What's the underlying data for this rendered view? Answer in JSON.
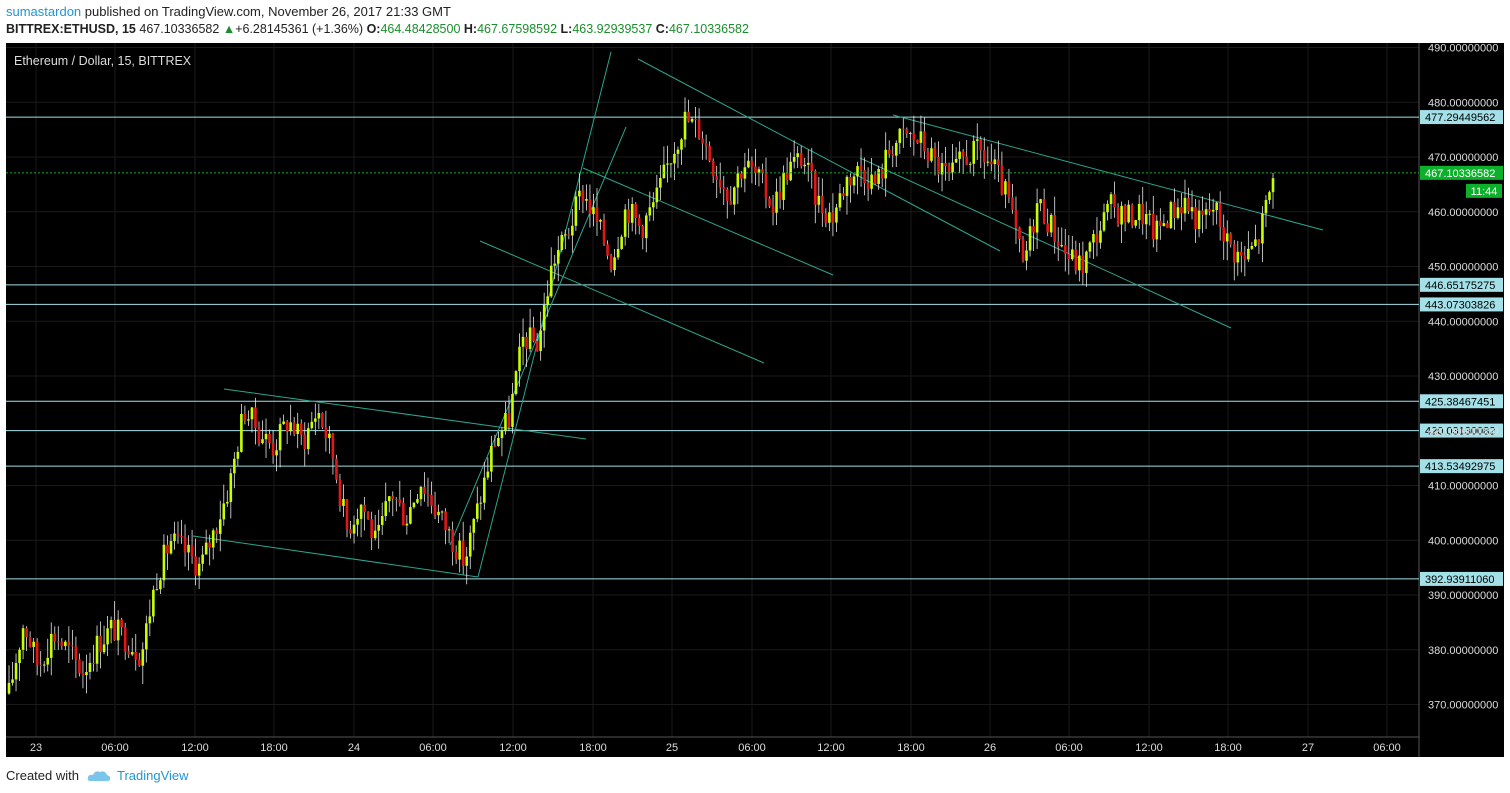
{
  "header": {
    "publisher": "sumastardon",
    "published_text": "published on TradingView.com, November 26, 2017 21:33 GMT",
    "symbol": "BITTREX:ETHUSD, 15",
    "last_price": "467.10336582",
    "change": "+6.28145361 (+1.36%)",
    "o_label": "O:",
    "o_value": "464.48428500",
    "h_label": "H:",
    "h_value": "467.67598592",
    "l_label": "L:",
    "l_value": "463.92939537",
    "c_label": "C:",
    "c_value": "467.10336582"
  },
  "footer": {
    "created_text": "Created with",
    "brand": "TradingView"
  },
  "colors": {
    "background": "#000000",
    "grid": "#1a1a1a",
    "candle_up": "#c8ff00",
    "candle_down": "#e01818",
    "wick": "#e8e8e8",
    "hline": "#a3e0e8",
    "trendline": "#2ba58f",
    "current_price": "#0db02b",
    "axis_text": "#dddddd",
    "label_bg": "#a3e0e8"
  },
  "chart_data": {
    "type": "candlestick",
    "title": "Ethereum / Dollar, 15, BITTREX",
    "y_ticks": [
      370,
      380,
      390,
      400,
      410,
      420,
      430,
      440,
      450,
      460,
      470,
      480,
      490
    ],
    "y_tick_format": "8 decimals",
    "ylim": [
      365,
      491
    ],
    "x_ticks": [
      "23",
      "06:00",
      "12:00",
      "18:00",
      "24",
      "06:00",
      "12:00",
      "18:00",
      "25",
      "06:00",
      "12:00",
      "18:00",
      "26",
      "06:00",
      "12:00",
      "18:00",
      "27",
      "06:00"
    ],
    "horizontal_levels": [
      "477.29449562",
      "446.65175275",
      "443.07303826",
      "425.38467451",
      "420.03130082",
      "413.53492975",
      "392.93911060"
    ],
    "current_price": "467.10336582",
    "countdown": "11:44",
    "price_path_close": [
      372,
      385,
      377,
      383,
      380,
      376,
      381,
      384,
      382,
      379,
      393,
      400,
      398,
      395,
      402,
      410,
      424,
      420,
      417,
      422,
      418,
      424,
      416,
      402,
      407,
      399,
      409,
      404,
      411,
      406,
      401,
      396,
      407,
      418,
      422,
      437,
      436,
      451,
      456,
      464,
      458,
      451,
      461,
      457,
      462,
      470,
      477,
      475,
      468,
      463,
      469,
      466,
      461,
      468,
      470,
      462,
      459,
      466,
      468,
      465,
      472,
      474,
      473,
      469,
      466,
      470,
      471,
      468,
      462,
      450,
      462,
      457,
      452,
      450,
      456,
      461,
      459,
      460,
      456,
      460,
      462,
      458,
      461,
      454,
      451,
      455,
      466
    ]
  }
}
